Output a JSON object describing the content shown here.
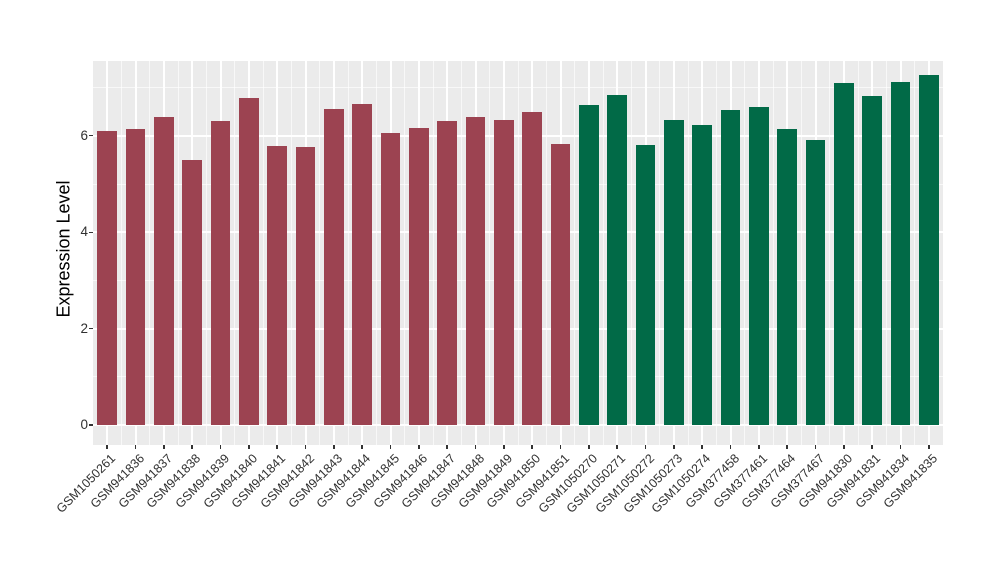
{
  "figure": {
    "background": "#FFFFFF",
    "panel_background": "#EBEBEB",
    "grid_color": "#FFFFFF",
    "tick_color": "#333333",
    "axis_text_color": "#303030",
    "group_colors": {
      "red": "#9C4351",
      "green": "#016A47"
    }
  },
  "chart_data": {
    "type": "bar",
    "title": "",
    "xlabel": "",
    "ylabel": "Expression Level",
    "ylim": [
      0,
      7.55
    ],
    "yticks": [
      0,
      2,
      4,
      6
    ],
    "yticks_minor": [
      1,
      3,
      5,
      7
    ],
    "grid": "major and minor, white on gray panel",
    "legend_position": "none",
    "categories": [
      "GSM1050261",
      "GSM941836",
      "GSM941837",
      "GSM941838",
      "GSM941839",
      "GSM941840",
      "GSM941841",
      "GSM941842",
      "GSM941843",
      "GSM941844",
      "GSM941845",
      "GSM941846",
      "GSM941847",
      "GSM941848",
      "GSM941849",
      "GSM941850",
      "GSM941851",
      "GSM1050270",
      "GSM1050271",
      "GSM1050272",
      "GSM1050273",
      "GSM1050274",
      "GSM377458",
      "GSM377461",
      "GSM377464",
      "GSM377467",
      "GSM941830",
      "GSM941831",
      "GSM941834",
      "GSM941835"
    ],
    "values": [
      6.1,
      6.15,
      6.4,
      5.5,
      6.3,
      6.78,
      5.78,
      5.76,
      6.56,
      6.67,
      6.06,
      6.17,
      6.31,
      6.38,
      6.33,
      6.5,
      5.84,
      6.63,
      6.85,
      5.8,
      6.33,
      6.22,
      6.54,
      6.6,
      6.15,
      5.92,
      7.1,
      6.83,
      7.12,
      7.27
    ],
    "bar_groups": [
      "red",
      "red",
      "red",
      "red",
      "red",
      "red",
      "red",
      "red",
      "red",
      "red",
      "red",
      "red",
      "red",
      "red",
      "red",
      "red",
      "red",
      "green",
      "green",
      "green",
      "green",
      "green",
      "green",
      "green",
      "green",
      "green",
      "green",
      "green",
      "green",
      "green"
    ]
  }
}
